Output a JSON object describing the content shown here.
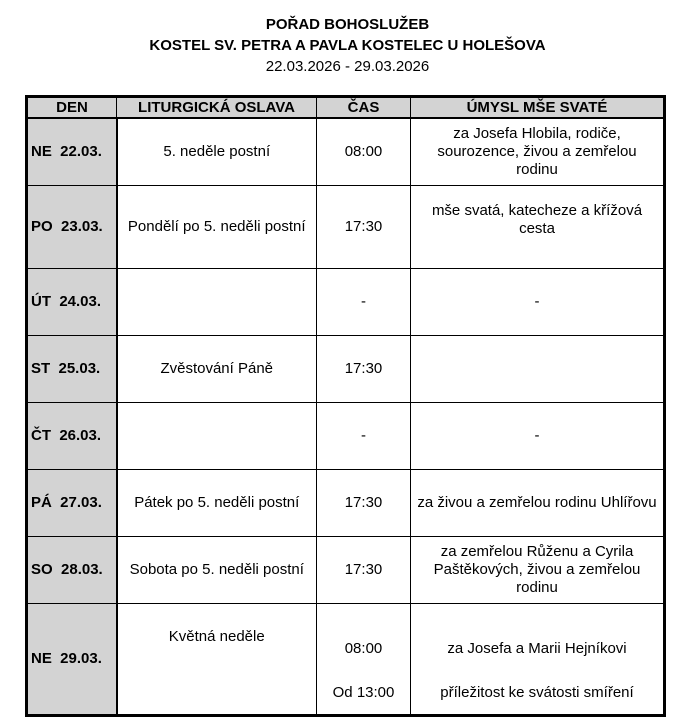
{
  "header": {
    "title": "POŘAD BOHOSLUŽEB",
    "subtitle": "KOSTEL SV. PETRA A PAVLA KOSTELEC U HOLEŠOVA",
    "dates": "22.03.2026 - 29.03.2026"
  },
  "table": {
    "columns": [
      "DEN",
      "LITURGICKÁ OSLAVA",
      "ČAS",
      "ÚMYSL MŠE SVATÉ"
    ],
    "rows": [
      {
        "day": "NE  22.03.",
        "celebration": "5. neděle postní",
        "time": "08:00",
        "intention": "za Josefa Hlobila, rodiče, sourozence, živou a zemřelou rodinu"
      },
      {
        "day": "PO  23.03.",
        "celebration": "Pondělí po 5. neděli postní",
        "time": "17:30",
        "intention": "mše svatá, katecheze a křížová cesta"
      },
      {
        "day": "ÚT  24.03.",
        "celebration": "",
        "time": "-",
        "intention": "-"
      },
      {
        "day": "ST  25.03.",
        "celebration": "Zvěstování Páně",
        "time": "17:30",
        "intention": ""
      },
      {
        "day": "ČT  26.03.",
        "celebration": "",
        "time": "-",
        "intention": "-"
      },
      {
        "day": "PÁ  27.03.",
        "celebration": "Pátek po 5. neděli postní",
        "time": "17:30",
        "intention": "za živou a zemřelou rodinu Uhlířovu"
      },
      {
        "day": "SO  28.03.",
        "celebration": "Sobota po 5. neděli postní",
        "time": "17:30",
        "intention": "za zemřelou Růženu a Cyrila Paštěkových, živou a zemřelou rodinu"
      }
    ],
    "last": {
      "day": "NE  29.03.",
      "celebration": "Květná neděle",
      "time1": "08:00",
      "intention1": "za Josefa a Marii Hejníkovi",
      "time2": "Od 13:00",
      "intention2": "příležitost ke svátosti smíření"
    }
  }
}
